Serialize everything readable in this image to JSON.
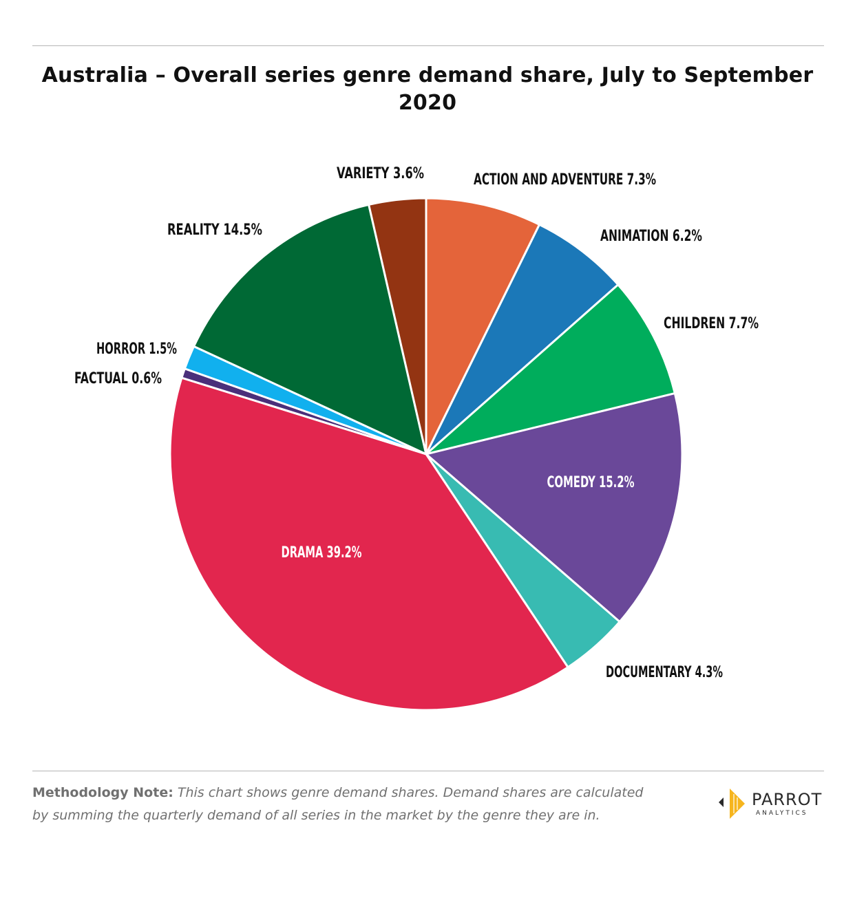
{
  "title": "Australia – Overall series genre demand share, July to September 2020",
  "chart_data": {
    "type": "pie",
    "title": "Australia – Overall series genre demand share, July to September 2020",
    "slices": [
      {
        "label": "ACTION AND ADVENTURE 7.3%",
        "name": "Action and Adventure",
        "value": 7.3,
        "color": "#e4643a"
      },
      {
        "label": "ANIMATION 6.2%",
        "name": "Animation",
        "value": 6.2,
        "color": "#1b78b8"
      },
      {
        "label": "CHILDREN 7.7%",
        "name": "Children",
        "value": 7.7,
        "color": "#00ad5c"
      },
      {
        "label": "COMEDY 15.2%",
        "name": "Comedy",
        "value": 15.2,
        "color": "#6a4899"
      },
      {
        "label": "DOCUMENTARY 4.3%",
        "name": "Documentary",
        "value": 4.3,
        "color": "#38bbb2"
      },
      {
        "label": "DRAMA 39.2%",
        "name": "Drama",
        "value": 39.2,
        "color": "#e2264e"
      },
      {
        "label": "FACTUAL 0.6%",
        "name": "Factual",
        "value": 0.6,
        "color": "#4a2f7a"
      },
      {
        "label": "HORROR 1.5%",
        "name": "Horror",
        "value": 1.5,
        "color": "#11b0ee"
      },
      {
        "label": "REALITY 14.5%",
        "name": "Reality",
        "value": 14.5,
        "color": "#006935"
      },
      {
        "label": "VARIETY 3.6%",
        "name": "Variety",
        "value": 3.6,
        "color": "#933412"
      }
    ]
  },
  "note": {
    "lead": "Methodology Note:",
    "body": "This chart shows genre demand shares. Demand shares are calculated by summing the quarterly demand of all series in the market by the genre they are in."
  },
  "logo": {
    "name": "PARROT",
    "sub": "ANALYTICS",
    "colors": {
      "gold": "#f6b51e",
      "dark": "#2a2a2a"
    }
  }
}
